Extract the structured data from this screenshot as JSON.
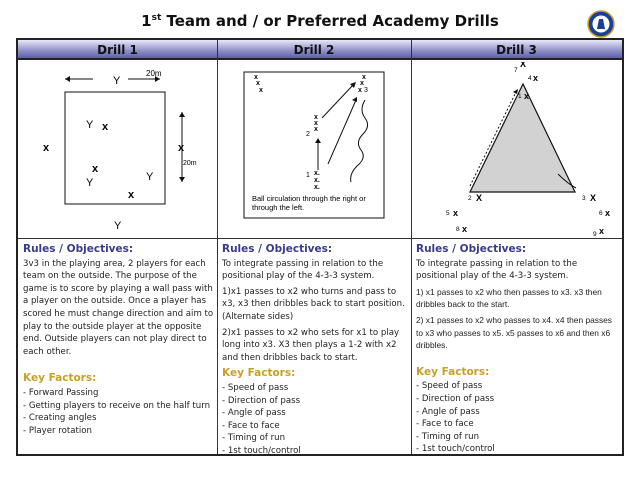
{
  "title": {
    "main": "Team and / or Preferred Academy Drills",
    "prefix": "1",
    "sup": "st"
  },
  "logo": {
    "icon": "chelsea-crest"
  },
  "headers": [
    "Drill 1",
    "Drill 2",
    "Drill 3"
  ],
  "drill1": {
    "diagram": {
      "dist_top": "20m",
      "dist_right": "20m",
      "Y": "Y",
      "X": "x"
    },
    "rules_heading": "Rules / Objectives:",
    "rules": [
      "3v3 in the playing area, 2 players for each team on the outside. The purpose of the game is to score by playing a wall pass with a player on the outside. Once a player has scored he must change direction and aim to play to the outside player at the opposite end. Outside players can not play direct to each other."
    ],
    "key_heading": "Key Factors:",
    "key": [
      "- Forward Passing",
      "- Getting players to receive on the  half turn",
      "- Creating angles",
      "- Player rotation"
    ]
  },
  "drill2": {
    "diagram": {
      "caption": "Ball circulation through the right or through the left.",
      "labels": [
        "1",
        "2",
        "3"
      ],
      "X": "x"
    },
    "rules_heading": "Rules / Objectives:",
    "rules": [
      "To integrate passing in relation to the positional play of the 4-3-3 system.",
      "1)x1 passes to x2 who turns and pass to x3, x3 then dribbles back to start position. (Alternate sides)",
      "2)x1 passes to x2 who sets for x1 to play long into x3. X3 then plays a 1-2 with x2 and then dribbles back to start."
    ],
    "key_heading": "Key Factors:",
    "key": [
      "- Speed of pass",
      "- Direction of pass",
      "- Angle of pass",
      "- Face to face",
      "- Timing of run",
      "- 1st touch/control"
    ]
  },
  "drill3": {
    "diagram": {
      "labels": [
        "1",
        "2",
        "3",
        "4",
        "5",
        "6",
        "7",
        "8",
        "9"
      ],
      "X": "X"
    },
    "rules_heading": "Rules / Objectives:",
    "rules": [
      "To integrate passing in relation to the positional play of the 4-3-3 system.",
      "1) x1 passes to x2 who then passes to x3. x3 then dribbles back to the start.",
      "2) x1 passes to x2 who passes to x4. x4  then passes to x3 who passes to x5. x5 passes to x6 and then x6 dribbles."
    ],
    "key_heading": "Key Factors:",
    "key": [
      "- Speed of pass",
      "- Direction of pass",
      "- Angle of pass",
      "- Face to face",
      "- Timing of run",
      "- 1st touch/control"
    ]
  }
}
